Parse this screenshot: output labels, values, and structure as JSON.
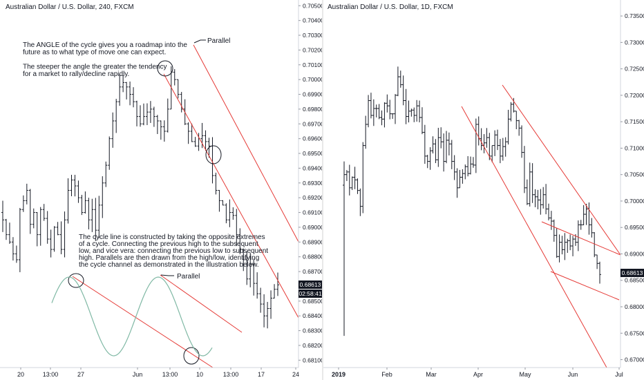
{
  "colors": {
    "bar": "#131722",
    "trendline": "#e53935",
    "sine": "#7fb8a4",
    "price_tag_bg": "#131722",
    "price_tag_fg": "#ffffff"
  },
  "left": {
    "title": "Australian Dollar / U.S. Dollar, 240, FXCM",
    "annotation_top": [
      "The ANGLE of the cycle gives you a roadmap into the",
      "future as to what type of move one can expect.",
      "",
      "The steeper the angle the greater the tendency",
      "for a market to rally/decline rapidly."
    ],
    "annotation_mid": [
      "The cycle line is constructed by taking the opposite extremes",
      "of a cycle. Connecting the previous high to the subsequent",
      "low, and vice vera: connecting the previous low to subsequent",
      "high. Parallels are then drawn from the high/low, identifying",
      "the cycle channel as demonstrated in the illustration below."
    ],
    "parallel_label_1": "Parallel",
    "parallel_label_2": "Parallel",
    "price_tag": "0.68613",
    "countdown_tag": "02:58:41"
  },
  "right": {
    "title": "Australian Dollar / U.S. Dollar, 1D, FXCM",
    "price_tag": "0.68613"
  },
  "chart_data": [
    {
      "type": "ohlc",
      "title": "Australian Dollar / U.S. Dollar, 240, FXCM",
      "ylim": [
        0.6805,
        0.7052
      ],
      "y_ticks": [
        "0.70500",
        "0.70400",
        "0.70300",
        "0.70200",
        "0.70100",
        "0.70000",
        "0.69900",
        "0.69800",
        "0.69700",
        "0.69600",
        "0.69500",
        "0.69400",
        "0.69300",
        "0.69200",
        "0.69100",
        "0.69000",
        "0.68900",
        "0.68800",
        "0.68700",
        "0.68600",
        "0.68500",
        "0.68400",
        "0.68300",
        "0.68200",
        "0.68100"
      ],
      "x_ticks": [
        "20",
        "13:00",
        "27",
        "Jun",
        "13:00",
        "10",
        "13:00",
        "17",
        "24"
      ],
      "closes": [
        0.6905,
        0.6895,
        0.689,
        0.6882,
        0.6878,
        0.6912,
        0.6918,
        0.6925,
        0.6902,
        0.691,
        0.6895,
        0.6912,
        0.6906,
        0.6892,
        0.6885,
        0.69,
        0.6895,
        0.6885,
        0.6905,
        0.6925,
        0.6932,
        0.6928,
        0.692,
        0.691,
        0.6918,
        0.6905,
        0.6912,
        0.6898,
        0.6915,
        0.693,
        0.6942,
        0.696,
        0.6972,
        0.6985,
        0.6995,
        0.6998,
        0.6995,
        0.699,
        0.6985,
        0.6975,
        0.697,
        0.6975,
        0.6978,
        0.698,
        0.6975,
        0.6972,
        0.6968,
        0.6965,
        0.698,
        0.7005,
        0.7,
        0.699,
        0.698,
        0.697,
        0.6965,
        0.6958,
        0.6955,
        0.696,
        0.6962,
        0.6958,
        0.6955,
        0.6935,
        0.6925,
        0.6918,
        0.6915,
        0.6905,
        0.691,
        0.6908,
        0.6895,
        0.6885,
        0.6878,
        0.6865,
        0.6875,
        0.6862,
        0.6855,
        0.6848,
        0.684,
        0.6845,
        0.6852,
        0.6858,
        0.6861
      ],
      "annotations": [
        "Parallel",
        "Parallel"
      ]
    },
    {
      "type": "ohlc",
      "title": "Australian Dollar / U.S. Dollar, 1D, FXCM",
      "ylim": [
        0.6685,
        0.7375
      ],
      "y_ticks": [
        "0.73500",
        "0.73000",
        "0.72500",
        "0.72000",
        "0.71500",
        "0.71000",
        "0.70500",
        "0.70000",
        "0.69500",
        "0.69000",
        "0.68500",
        "0.68000",
        "0.67500",
        "0.67000"
      ],
      "x_ticks": [
        "2019",
        "Feb",
        "Mar",
        "Apr",
        "May",
        "Jun",
        "Jul"
      ],
      "closes": [
        0.705,
        0.7055,
        0.7025,
        0.7045,
        0.704,
        0.702,
        0.699,
        0.7105,
        0.7145,
        0.719,
        0.7162,
        0.7175,
        0.7175,
        0.7158,
        0.7155,
        0.7185,
        0.718,
        0.7165,
        0.7165,
        0.72,
        0.7235,
        0.722,
        0.719,
        0.716,
        0.717,
        0.7172,
        0.7162,
        0.718,
        0.7158,
        0.713,
        0.7085,
        0.7075,
        0.7095,
        0.7108,
        0.7078,
        0.712,
        0.7112,
        0.7075,
        0.7115,
        0.7108,
        0.7075,
        0.7055,
        0.7025,
        0.7045,
        0.7052,
        0.7065,
        0.7052,
        0.707,
        0.7068,
        0.7145,
        0.7118,
        0.7105,
        0.711,
        0.712,
        0.7085,
        0.7105,
        0.7125,
        0.7105,
        0.7085,
        0.7103,
        0.7112,
        0.7155,
        0.7183,
        0.717,
        0.7152,
        0.7138,
        0.7092,
        0.7025,
        0.6995,
        0.7055,
        0.7012,
        0.7008,
        0.7002,
        0.6993,
        0.7012,
        0.6985,
        0.6968,
        0.6962,
        0.6935,
        0.6895,
        0.6922,
        0.6908,
        0.6922,
        0.6925,
        0.6915,
        0.6928,
        0.6922,
        0.6955,
        0.6955,
        0.6975,
        0.6985,
        0.6955,
        0.694,
        0.6898,
        0.6882,
        0.6861
      ]
    }
  ]
}
